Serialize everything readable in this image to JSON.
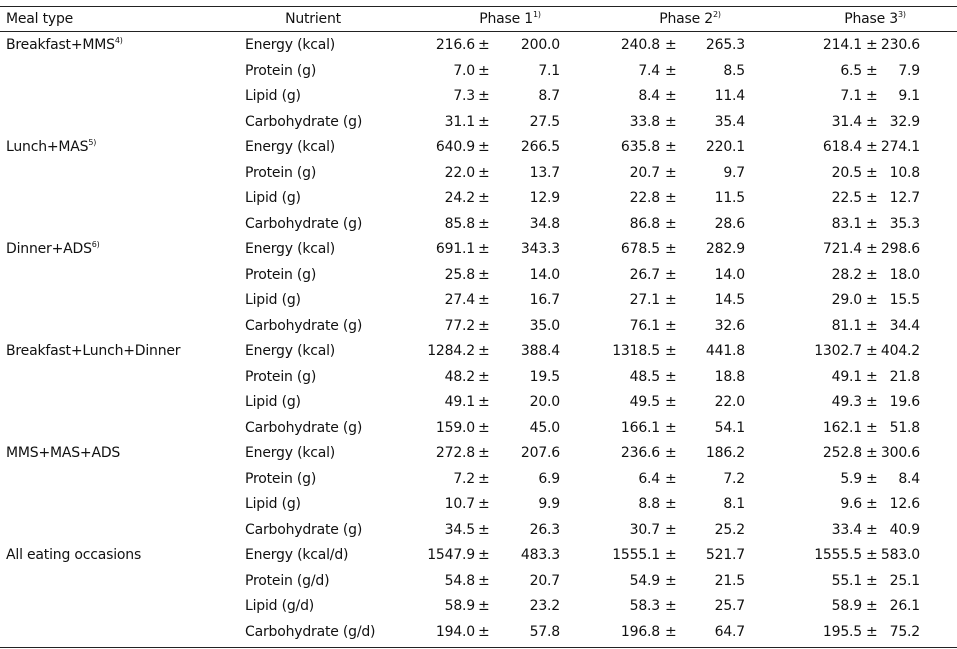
{
  "table": {
    "header": [
      {
        "label": "Meal type"
      },
      {
        "label": "Nutrient"
      },
      {
        "label": "Phase 1",
        "note": "1)"
      },
      {
        "label": "Phase 2",
        "note": "2)"
      },
      {
        "label": "Phase 3",
        "note": "3)"
      }
    ],
    "separator": "±",
    "groups": [
      {
        "meal": "Breakfast+MMS",
        "note": "4)",
        "rows": [
          {
            "nutrient": "Energy (kcal)",
            "cells": [
              [
                "216.6",
                "200.0"
              ],
              [
                "240.8",
                "265.3"
              ],
              [
                "214.1",
                "230.6"
              ]
            ]
          },
          {
            "nutrient": "Protein (g)",
            "cells": [
              [
                "7.0",
                "7.1"
              ],
              [
                "7.4",
                "8.5"
              ],
              [
                "6.5",
                "7.9"
              ]
            ]
          },
          {
            "nutrient": "Lipid (g)",
            "cells": [
              [
                "7.3",
                "8.7"
              ],
              [
                "8.4",
                "11.4"
              ],
              [
                "7.1",
                "9.1"
              ]
            ]
          },
          {
            "nutrient": "Carbohydrate (g)",
            "cells": [
              [
                "31.1",
                "27.5"
              ],
              [
                "33.8",
                "35.4"
              ],
              [
                "31.4",
                "32.9"
              ]
            ]
          }
        ]
      },
      {
        "meal": "Lunch+MAS",
        "note": "5)",
        "rows": [
          {
            "nutrient": "Energy (kcal)",
            "cells": [
              [
                "640.9",
                "266.5"
              ],
              [
                "635.8",
                "220.1"
              ],
              [
                "618.4",
                "274.1"
              ]
            ]
          },
          {
            "nutrient": "Protein (g)",
            "cells": [
              [
                "22.0",
                "13.7"
              ],
              [
                "20.7",
                "9.7"
              ],
              [
                "20.5",
                "10.8"
              ]
            ]
          },
          {
            "nutrient": "Lipid (g)",
            "cells": [
              [
                "24.2",
                "12.9"
              ],
              [
                "22.8",
                "11.5"
              ],
              [
                "22.5",
                "12.7"
              ]
            ]
          },
          {
            "nutrient": "Carbohydrate (g)",
            "cells": [
              [
                "85.8",
                "34.8"
              ],
              [
                "86.8",
                "28.6"
              ],
              [
                "83.1",
                "35.3"
              ]
            ]
          }
        ]
      },
      {
        "meal": "Dinner+ADS",
        "note": "6)",
        "rows": [
          {
            "nutrient": "Energy (kcal)",
            "cells": [
              [
                "691.1",
                "343.3"
              ],
              [
                "678.5",
                "282.9"
              ],
              [
                "721.4",
                "298.6"
              ]
            ]
          },
          {
            "nutrient": "Protein (g)",
            "cells": [
              [
                "25.8",
                "14.0"
              ],
              [
                "26.7",
                "14.0"
              ],
              [
                "28.2",
                "18.0"
              ]
            ]
          },
          {
            "nutrient": "Lipid (g)",
            "cells": [
              [
                "27.4",
                "16.7"
              ],
              [
                "27.1",
                "14.5"
              ],
              [
                "29.0",
                "15.5"
              ]
            ]
          },
          {
            "nutrient": "Carbohydrate (g)",
            "cells": [
              [
                "77.2",
                "35.0"
              ],
              [
                "76.1",
                "32.6"
              ],
              [
                "81.1",
                "34.4"
              ]
            ]
          }
        ]
      },
      {
        "meal": "Breakfast+Lunch+Dinner",
        "rows": [
          {
            "nutrient": "Energy (kcal)",
            "cells": [
              [
                "1284.2",
                "388.4"
              ],
              [
                "1318.5",
                "441.8"
              ],
              [
                "1302.7",
                "404.2"
              ]
            ]
          },
          {
            "nutrient": "Protein (g)",
            "cells": [
              [
                "48.2",
                "19.5"
              ],
              [
                "48.5",
                "18.8"
              ],
              [
                "49.1",
                "21.8"
              ]
            ]
          },
          {
            "nutrient": "Lipid (g)",
            "cells": [
              [
                "49.1",
                "20.0"
              ],
              [
                "49.5",
                "22.0"
              ],
              [
                "49.3",
                "19.6"
              ]
            ]
          },
          {
            "nutrient": "Carbohydrate (g)",
            "cells": [
              [
                "159.0",
                "45.0"
              ],
              [
                "166.1",
                "54.1"
              ],
              [
                "162.1",
                "51.8"
              ]
            ]
          }
        ]
      },
      {
        "meal": "MMS+MAS+ADS",
        "rows": [
          {
            "nutrient": "Energy (kcal)",
            "cells": [
              [
                "272.8",
                "207.6"
              ],
              [
                "236.6",
                "186.2"
              ],
              [
                "252.8",
                "300.6"
              ]
            ]
          },
          {
            "nutrient": "Protein (g)",
            "cells": [
              [
                "7.2",
                "6.9"
              ],
              [
                "6.4",
                "7.2"
              ],
              [
                "5.9",
                "8.4"
              ]
            ]
          },
          {
            "nutrient": "Lipid (g)",
            "cells": [
              [
                "10.7",
                "9.9"
              ],
              [
                "8.8",
                "8.1"
              ],
              [
                "9.6",
                "12.6"
              ]
            ]
          },
          {
            "nutrient": "Carbohydrate (g)",
            "cells": [
              [
                "34.5",
                "26.3"
              ],
              [
                "30.7",
                "25.2"
              ],
              [
                "33.4",
                "40.9"
              ]
            ]
          }
        ]
      },
      {
        "meal": "All eating occasions",
        "rows": [
          {
            "nutrient": "Energy (kcal/d)",
            "cells": [
              [
                "1547.9",
                "483.3"
              ],
              [
                "1555.1",
                "521.7"
              ],
              [
                "1555.5",
                "583.0"
              ]
            ]
          },
          {
            "nutrient": "Protein (g/d)",
            "cells": [
              [
                "54.8",
                "20.7"
              ],
              [
                "54.9",
                "21.5"
              ],
              [
                "55.1",
                "25.1"
              ]
            ]
          },
          {
            "nutrient": "Lipid (g/d)",
            "cells": [
              [
                "58.9",
                "23.2"
              ],
              [
                "58.3",
                "25.7"
              ],
              [
                "58.9",
                "26.1"
              ]
            ]
          },
          {
            "nutrient": "Carbohydrate (g/d)",
            "cells": [
              [
                "194.0",
                "57.8"
              ],
              [
                "196.8",
                "64.7"
              ],
              [
                "195.5",
                "75.2"
              ]
            ]
          }
        ]
      }
    ]
  }
}
